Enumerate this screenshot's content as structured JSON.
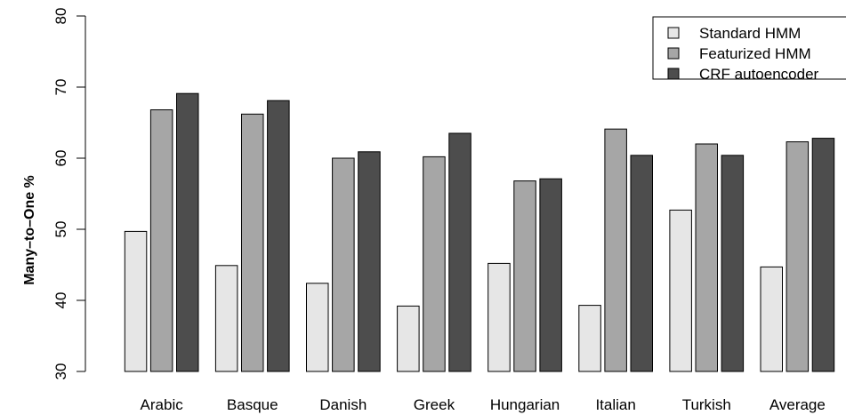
{
  "chart_data": {
    "type": "bar",
    "title": "",
    "xlabel": "",
    "ylabel": "Many–to–One %",
    "ylim": [
      30,
      80
    ],
    "yticks": [
      30,
      40,
      50,
      60,
      70,
      80
    ],
    "categories": [
      "Arabic",
      "Basque",
      "Danish",
      "Greek",
      "Hungarian",
      "Italian",
      "Turkish",
      "Average"
    ],
    "series": [
      {
        "name": "Standard HMM",
        "color": "#e6e6e6",
        "values": [
          49.7,
          44.9,
          42.4,
          39.2,
          45.2,
          39.3,
          52.7,
          44.7
        ]
      },
      {
        "name": "Featurized HMM",
        "color": "#a6a6a6",
        "values": [
          66.8,
          66.2,
          60.0,
          60.2,
          56.8,
          64.1,
          62.0,
          62.3
        ]
      },
      {
        "name": "CRF autoencoder",
        "color": "#4d4d4d",
        "values": [
          69.1,
          68.1,
          60.9,
          63.5,
          57.1,
          60.4,
          60.4,
          62.8
        ]
      }
    ],
    "legend_position": "top-right",
    "grid": false
  }
}
